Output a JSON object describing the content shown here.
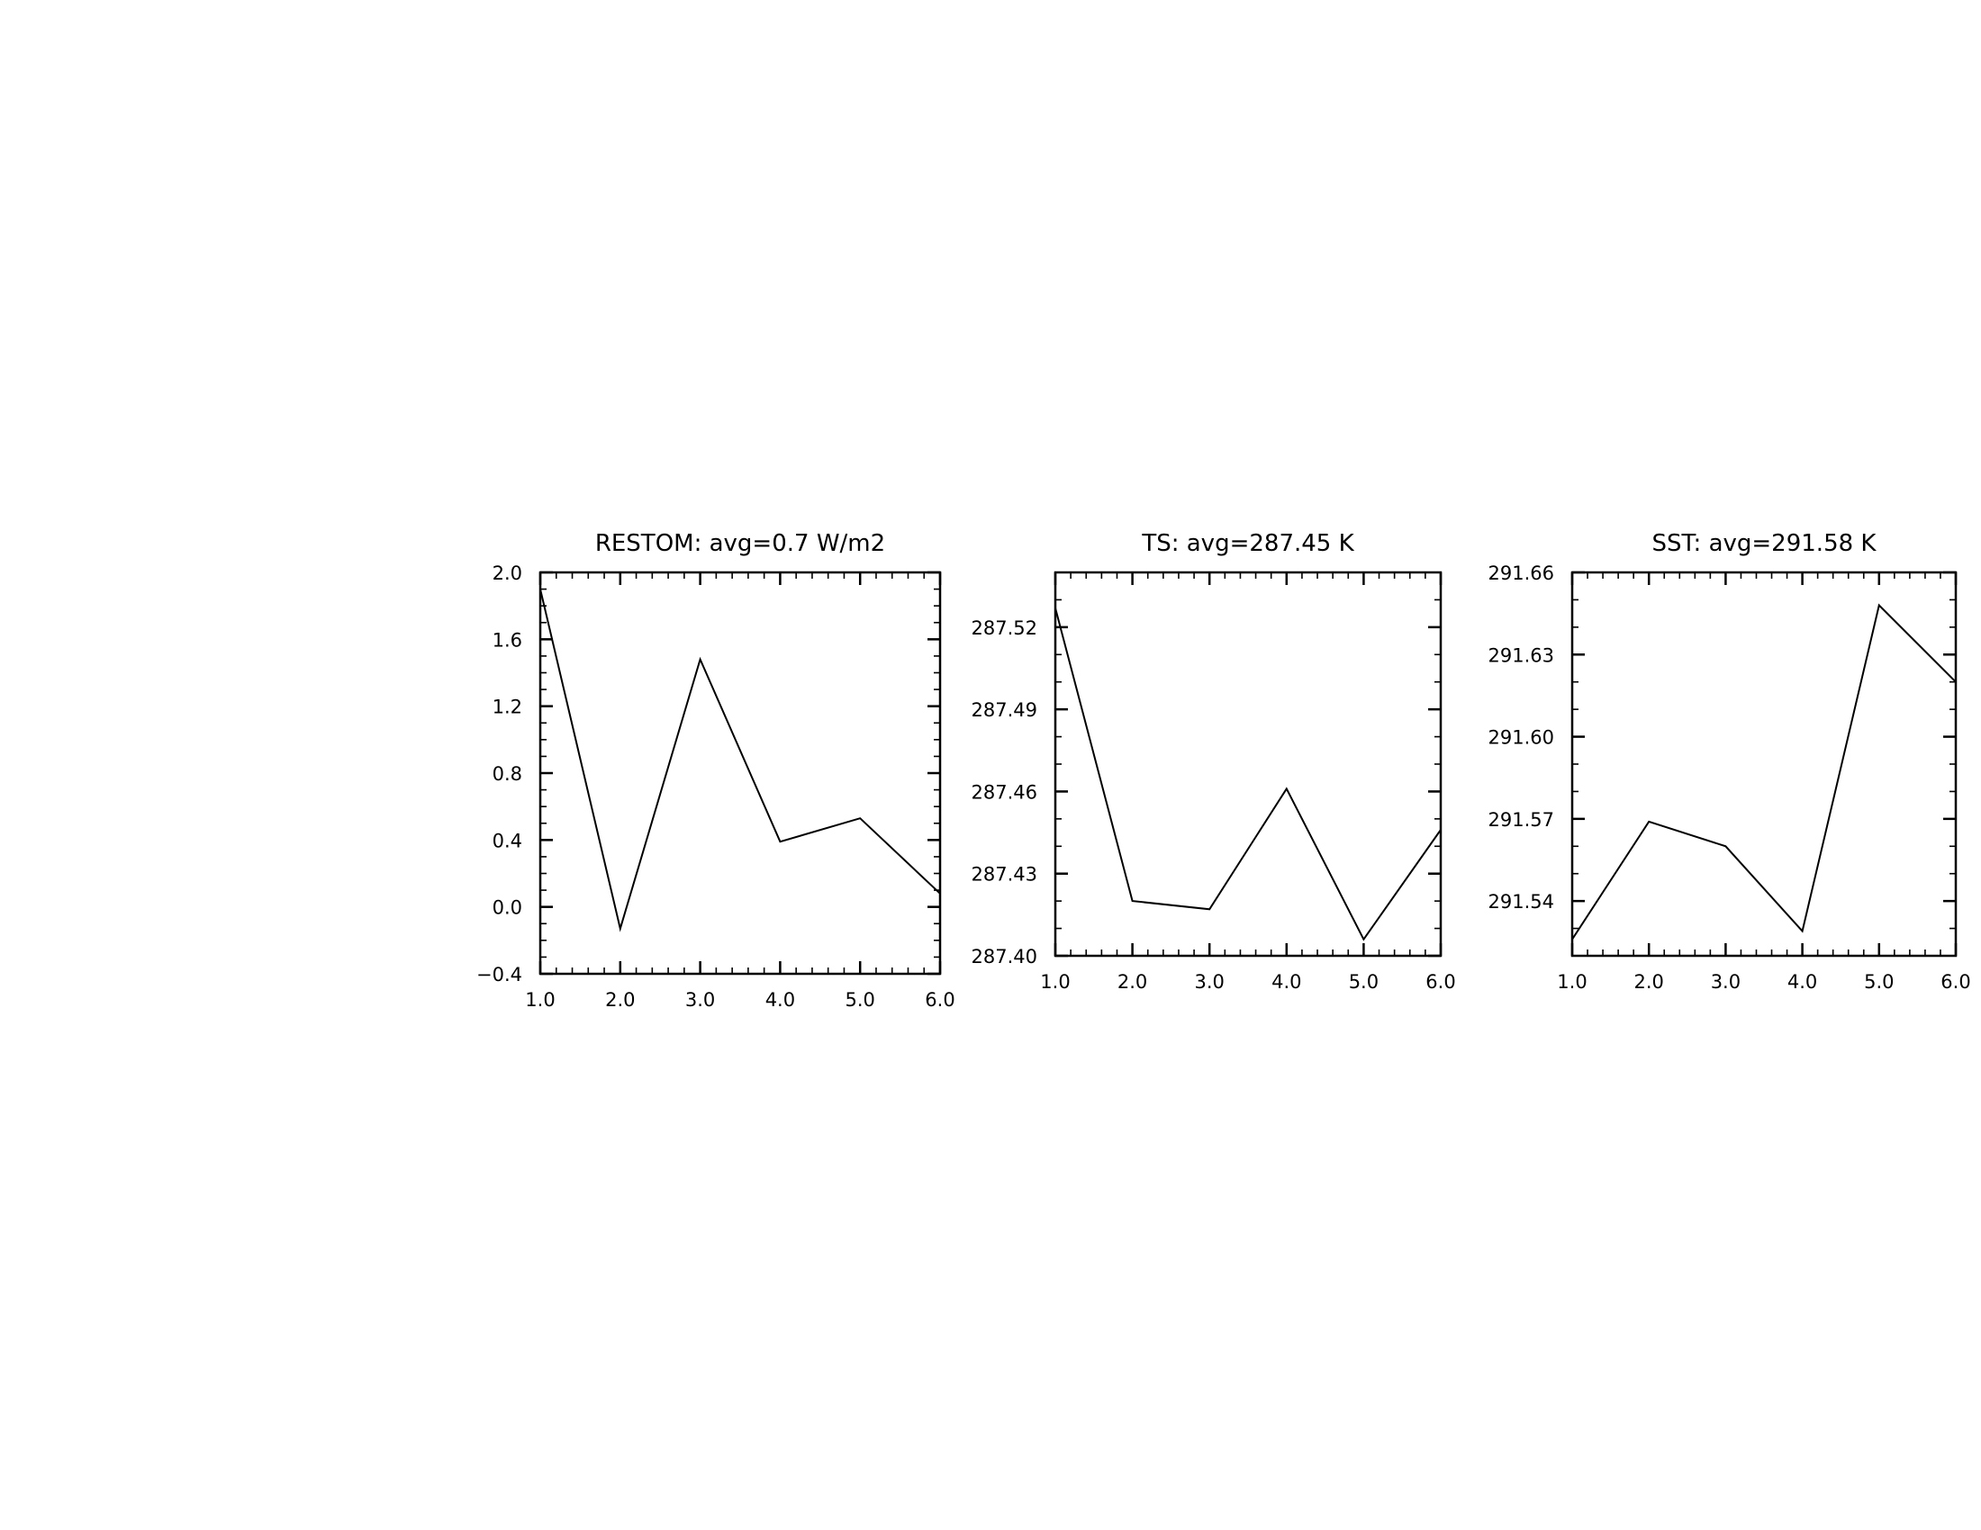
{
  "chart_data": [
    {
      "type": "line",
      "title": "RESTOM: avg=0.7 W/m2",
      "xlabel": "",
      "ylabel": "",
      "xlim": [
        1.0,
        6.0
      ],
      "ylim": [
        -0.4,
        2.0
      ],
      "x_ticks": [
        1.0,
        2.0,
        3.0,
        4.0,
        5.0,
        6.0
      ],
      "x_tick_labels": [
        "1.0",
        "2.0",
        "3.0",
        "4.0",
        "5.0",
        "6.0"
      ],
      "y_ticks": [
        -0.4,
        0.0,
        0.4,
        0.8,
        1.2,
        1.6,
        2.0
      ],
      "y_tick_labels": [
        "−0.4",
        "0.0",
        "0.4",
        "0.8",
        "1.2",
        "1.6",
        "2.0"
      ],
      "grid": false,
      "legend": "none",
      "line_color": "#000000",
      "series": [
        {
          "x": [
            1.0,
            2.0,
            3.0,
            4.0,
            5.0,
            6.0
          ],
          "values": [
            1.9,
            -0.13,
            1.48,
            0.39,
            0.53,
            0.08
          ]
        }
      ]
    },
    {
      "type": "line",
      "title": "TS: avg=287.45 K",
      "xlabel": "",
      "ylabel": "",
      "xlim": [
        1.0,
        6.0
      ],
      "ylim": [
        287.4,
        287.54
      ],
      "x_ticks": [
        1.0,
        2.0,
        3.0,
        4.0,
        5.0,
        6.0
      ],
      "x_tick_labels": [
        "1.0",
        "2.0",
        "3.0",
        "4.0",
        "5.0",
        "6.0"
      ],
      "y_ticks": [
        287.4,
        287.43,
        287.46,
        287.49,
        287.52
      ],
      "y_tick_labels": [
        "287.40",
        "287.43",
        "287.46",
        "287.49",
        "287.52"
      ],
      "grid": false,
      "legend": "none",
      "line_color": "#000000",
      "series": [
        {
          "x": [
            1.0,
            2.0,
            3.0,
            4.0,
            5.0,
            6.0
          ],
          "values": [
            287.527,
            287.42,
            287.417,
            287.461,
            287.406,
            287.446
          ]
        }
      ]
    },
    {
      "type": "line",
      "title": "SST: avg=291.58 K",
      "xlabel": "",
      "ylabel": "",
      "xlim": [
        1.0,
        6.0
      ],
      "ylim": [
        291.52,
        291.66
      ],
      "x_ticks": [
        1.0,
        2.0,
        3.0,
        4.0,
        5.0,
        6.0
      ],
      "x_tick_labels": [
        "1.0",
        "2.0",
        "3.0",
        "4.0",
        "5.0",
        "6.0"
      ],
      "y_ticks": [
        291.54,
        291.57,
        291.6,
        291.63,
        291.66
      ],
      "y_tick_labels": [
        "291.54",
        "291.57",
        "291.60",
        "291.63",
        "291.66"
      ],
      "grid": false,
      "legend": "none",
      "line_color": "#000000",
      "series": [
        {
          "x": [
            1.0,
            2.0,
            3.0,
            4.0,
            5.0,
            6.0
          ],
          "values": [
            291.526,
            291.569,
            291.56,
            291.529,
            291.648,
            291.62
          ]
        }
      ]
    }
  ]
}
